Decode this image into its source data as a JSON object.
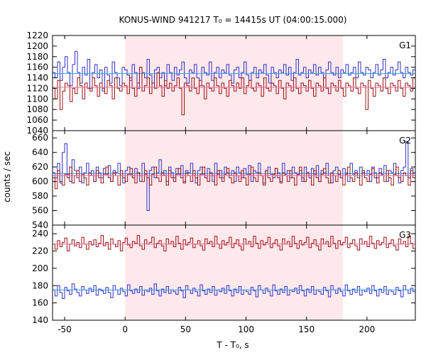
{
  "chart_data": {
    "type": "line",
    "title": "KONUS-WIND 941217 T₀ = 14415s UT (04:00:15.000)",
    "xlabel": "T - T₀, s",
    "ylabel": "counts / sec",
    "xlim": [
      -60,
      240
    ],
    "x_ticks": [
      -50,
      0,
      50,
      100,
      150,
      200
    ],
    "shaded_interval": [
      0,
      180
    ],
    "colors": {
      "red_series": "#a01010",
      "blue_series": "#3030c8",
      "red_mean": "#e070a0",
      "blue_mean": "#30a0e0",
      "shade": "#fde8ec"
    },
    "panels": [
      {
        "label": "G1",
        "ylim": [
          1040,
          1220
        ],
        "y_ticks": [
          1040,
          1060,
          1080,
          1100,
          1120,
          1140,
          1160,
          1180,
          1200,
          1220
        ],
        "series": [
          {
            "color_key": "blue_series",
            "mean": 1148,
            "mean_color_key": "blue_mean",
            "values": [
              1150,
              1140,
              1170,
              1135,
              1160,
              1180,
              1150,
              1125,
              1165,
              1190,
              1150,
              1130,
              1160,
              1145,
              1175,
              1120,
              1150,
              1165,
              1140,
              1155,
              1115,
              1160,
              1145,
              1130,
              1170,
              1150,
              1140,
              1125,
              1160,
              1155,
              1145,
              1135,
              1165,
              1150,
              1120,
              1160,
              1150,
              1140,
              1175,
              1145,
              1130,
              1155,
              1160,
              1140,
              1150,
              1125,
              1165,
              1150,
              1135,
              1160,
              1145,
              1155,
              1170,
              1140,
              1130,
              1155,
              1150,
              1165,
              1140,
              1125,
              1160,
              1150,
              1145,
              1170,
              1135,
              1150,
              1160,
              1140,
              1155,
              1150,
              1165,
              1145,
              1130,
              1155,
              1160,
              1140,
              1150,
              1170,
              1145,
              1135,
              1150,
              1160,
              1140,
              1155,
              1150,
              1165,
              1145,
              1130,
              1160,
              1150,
              1140,
              1155,
              1150,
              1165,
              1145,
              1160,
              1135,
              1150,
              1175,
              1145,
              1150,
              1160,
              1140,
              1155,
              1150,
              1165,
              1145,
              1160,
              1150,
              1140,
              1155,
              1170,
              1150,
              1145,
              1160,
              1140,
              1155,
              1150,
              1165,
              1145,
              1150,
              1160,
              1140,
              1170,
              1150,
              1145,
              1160,
              1155,
              1140,
              1150,
              1165,
              1145,
              1155,
              1175,
              1140,
              1150,
              1160,
              1145,
              1155,
              1170,
              1150,
              1140,
              1160,
              1150,
              1145,
              1155
            ]
          },
          {
            "color_key": "red_series",
            "mean": 1122,
            "mean_color_key": "red_mean",
            "values": [
              1120,
              1100,
              1135,
              1080,
              1115,
              1130,
              1125,
              1095,
              1120,
              1110,
              1140,
              1125,
              1100,
              1130,
              1120,
              1115,
              1140,
              1125,
              1105,
              1130,
              1120,
              1110,
              1135,
              1125,
              1100,
              1140,
              1120,
              1115,
              1130,
              1125,
              1110,
              1140,
              1120,
              1105,
              1130,
              1160,
              1115,
              1125,
              1140,
              1110,
              1130,
              1120,
              1150,
              1125,
              1105,
              1135,
              1120,
              1130,
              1115,
              1125,
              1140,
              1120,
              1070,
              1130,
              1125,
              1115,
              1140,
              1120,
              1110,
              1135,
              1125,
              1100,
              1130,
              1120,
              1115,
              1140,
              1125,
              1110,
              1130,
              1120,
              1105,
              1135,
              1125,
              1115,
              1130,
              1120,
              1140,
              1110,
              1125,
              1135,
              1120,
              1115,
              1130,
              1125,
              1105,
              1140,
              1120,
              1115,
              1130,
              1125,
              1110,
              1135,
              1120,
              1100,
              1130,
              1125,
              1115,
              1140,
              1120,
              1110,
              1130,
              1125,
              1115,
              1135,
              1120,
              1105,
              1130,
              1125,
              1115,
              1140,
              1120,
              1110,
              1130,
              1125,
              1115,
              1135,
              1120,
              1105,
              1130,
              1125,
              1115,
              1140,
              1120,
              1110,
              1130,
              1125,
              1080,
              1135,
              1120,
              1105,
              1130,
              1125,
              1115,
              1140,
              1120,
              1110,
              1130,
              1125,
              1115,
              1135,
              1120,
              1105,
              1130,
              1125,
              1115,
              1140
            ]
          }
        ]
      },
      {
        "label": "G2",
        "ylim": [
          540,
          670
        ],
        "y_ticks": [
          540,
          560,
          580,
          600,
          620,
          640,
          660
        ],
        "series": [
          {
            "color_key": "blue_series",
            "mean": 611,
            "mean_color_key": "blue_mean",
            "values": [
              612,
              605,
              625,
              598,
              640,
              652,
              610,
              600,
              630,
              615,
              605,
              620,
              598,
              612,
              625,
              608,
              615,
              600,
              620,
              612,
              605,
              618,
              610,
              622,
              600,
              615,
              612,
              625,
              608,
              598,
              615,
              620,
              610,
              605,
              618,
              612,
              600,
              625,
              610,
              560,
              615,
              620,
              605,
              612,
              630,
              608,
              615,
              600,
              620,
              612,
              605,
              618,
              610,
              622,
              600,
              615,
              612,
              625,
              608,
              598,
              615,
              620,
              610,
              605,
              618,
              612,
              600,
              625,
              610,
              615,
              605,
              620,
              612,
              608,
              615,
              600,
              620,
              612,
              605,
              618,
              610,
              622,
              600,
              615,
              612,
              625,
              608,
              598,
              615,
              620,
              610,
              605,
              618,
              612,
              600,
              625,
              610,
              615,
              605,
              620,
              612,
              608,
              615,
              600,
              620,
              612,
              605,
              618,
              610,
              622,
              600,
              615,
              612,
              625,
              608,
              598,
              615,
              620,
              610,
              605,
              618,
              612,
              600,
              625,
              610,
              615,
              605,
              620,
              612,
              608,
              615,
              600,
              620,
              612,
              605,
              618,
              610,
              622,
              600,
              615,
              612,
              625,
              608,
              598,
              615,
              620,
              655,
              605,
              618,
              612
            ]
          },
          {
            "color_key": "red_series",
            "mean": 608,
            "mean_color_key": "red_mean",
            "values": [
              605,
              590,
              615,
              600,
              595,
              610,
              605,
              620,
              598,
              608,
              615,
              600,
              610,
              605,
              595,
              612,
              608,
              600,
              615,
              605,
              598,
              610,
              620,
              605,
              600,
              612,
              608,
              595,
              615,
              605,
              600,
              610,
              618,
              605,
              598,
              612,
              608,
              600,
              615,
              605,
              595,
              610,
              620,
              605,
              600,
              612,
              608,
              595,
              615,
              605,
              600,
              610,
              618,
              605,
              598,
              612,
              608,
              600,
              615,
              605,
              595,
              610,
              620,
              605,
              600,
              612,
              608,
              595,
              615,
              605,
              600,
              610,
              618,
              605,
              598,
              612,
              608,
              600,
              615,
              605,
              595,
              610,
              620,
              605,
              600,
              612,
              608,
              595,
              615,
              605,
              600,
              610,
              618,
              605,
              598,
              612,
              608,
              600,
              615,
              605,
              595,
              610,
              620,
              605,
              600,
              612,
              608,
              595,
              615,
              605,
              600,
              610,
              618,
              605,
              598,
              612,
              608,
              600,
              615,
              605,
              595,
              610,
              620,
              605,
              600,
              612,
              608,
              595,
              615,
              605,
              600,
              610,
              618,
              605,
              598,
              612,
              608,
              600,
              615,
              605,
              595,
              610,
              620,
              605,
              600,
              612,
              608,
              595,
              615,
              605
            ]
          }
        ]
      },
      {
        "label": "G3",
        "ylim": [
          140,
          250
        ],
        "y_ticks": [
          140,
          160,
          180,
          200,
          220,
          240
        ],
        "series": [
          {
            "color_key": "red_series",
            "mean": 228,
            "mean_color_key": "red_mean",
            "values": [
              228,
              222,
              232,
              225,
              230,
              235,
              220,
              228,
              233,
              226,
              230,
              224,
              236,
              228,
              222,
              231,
              227,
              233,
              225,
              229,
              238,
              226,
              230,
              222,
              234,
              228,
              225,
              232,
              220,
              230,
              235,
              227,
              224,
              231,
              229,
              238,
              226,
              222,
              233,
              228,
              230,
              236,
              224,
              229,
              232,
              226,
              220,
              234,
              228,
              231,
              225,
              237,
              229,
              222,
              233,
              227,
              230,
              235,
              224,
              228,
              232,
              226,
              221,
              234,
              229,
              231,
              225,
              237,
              228,
              223,
              232,
              227,
              230,
              236,
              224,
              229,
              233,
              226,
              221,
              234,
              228,
              231,
              225,
              237,
              229,
              223,
              232,
              227,
              230,
              236,
              224,
              229,
              233,
              226,
              221,
              234,
              228,
              231,
              225,
              237,
              229,
              223,
              232,
              227,
              230,
              236,
              224,
              229,
              233,
              226,
              221,
              234,
              228,
              231,
              225,
              237,
              229,
              223,
              232,
              227,
              230,
              236,
              224,
              229,
              233,
              226,
              221,
              234,
              228,
              231,
              225,
              237,
              229,
              223,
              232,
              227,
              230,
              236,
              224,
              229,
              233,
              226,
              221,
              234,
              228,
              231,
              225,
              237,
              229,
              223
            ]
          },
          {
            "color_key": "blue_series",
            "mean": 175,
            "mean_color_key": "blue_mean",
            "values": [
              175,
              168,
              180,
              172,
              165,
              178,
              174,
              170,
              182,
              176,
              172,
              168,
              179,
              175,
              171,
              177,
              173,
              180,
              169,
              176,
              174,
              171,
              178,
              172,
              166,
              180,
              175,
              170,
              177,
              173,
              168,
              181,
              174,
              171,
              176,
              172,
              179,
              169,
              175,
              173,
              177,
              170,
              182,
              174,
              168,
              176,
              172,
              179,
              171,
              175,
              173,
              170,
              178,
              174,
              166,
              180,
              175,
              171,
              177,
              173,
              168,
              181,
              174,
              170,
              176,
              172,
              179,
              169,
              175,
              173,
              177,
              171,
              180,
              174,
              168,
              176,
              172,
              179,
              170,
              175,
              173,
              170,
              178,
              174,
              167,
              180,
              175,
              171,
              177,
              173,
              168,
              181,
              174,
              170,
              176,
              172,
              179,
              169,
              175,
              173,
              177,
              171,
              180,
              174,
              168,
              176,
              172,
              179,
              170,
              175,
              173,
              170,
              178,
              174,
              167,
              180,
              175,
              171,
              177,
              173,
              168,
              181,
              174,
              170,
              176,
              172,
              179,
              169,
              175,
              173,
              177,
              171,
              180,
              174,
              168,
              176,
              172,
              179,
              170,
              175,
              173,
              170,
              178,
              174,
              167,
              180,
              175,
              171,
              177,
              173
            ]
          }
        ]
      }
    ]
  }
}
